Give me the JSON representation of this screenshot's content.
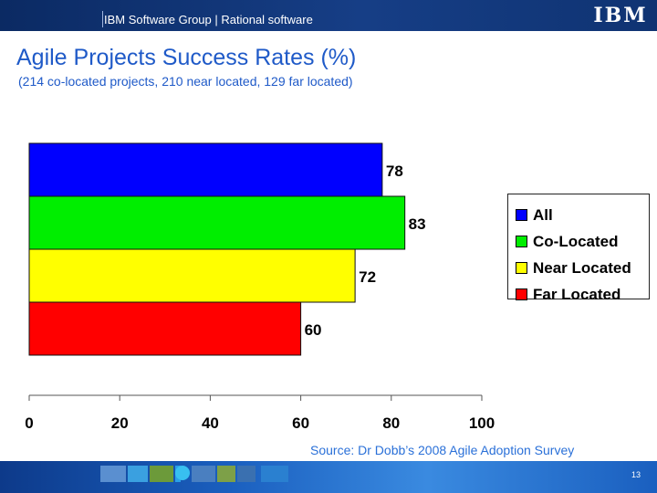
{
  "header": {
    "text": "IBM Software Group | Rational software",
    "logo": "IBM"
  },
  "title": "Agile Projects Success Rates (%)",
  "subtitle": "(214 co-located projects, 210 near located, 129 far located)",
  "chart_data": {
    "type": "bar",
    "orientation": "horizontal",
    "title": "",
    "xlabel": "",
    "ylabel": "",
    "categories": [
      "All",
      "Co-Located",
      "Near Located",
      "Far Located"
    ],
    "values": [
      78,
      83,
      72,
      60
    ],
    "colors": [
      "#0000ff",
      "#00ee00",
      "#ffff00",
      "#ff0000"
    ],
    "xlim": [
      0,
      100
    ],
    "xticks": [
      0,
      20,
      40,
      60,
      80,
      100
    ],
    "grid": false,
    "legend_position": "right"
  },
  "legend": {
    "items": [
      {
        "label": "All",
        "color": "#0000ff"
      },
      {
        "label": "Co-Located",
        "color": "#00ee00"
      },
      {
        "label": "Near Located",
        "color": "#ffff00"
      },
      {
        "label": "Far Located",
        "color": "#ff0000"
      }
    ]
  },
  "source": "Source: Dr Dobb’s 2008 Agile Adoption Survey",
  "footer": {
    "page_number": "13"
  }
}
